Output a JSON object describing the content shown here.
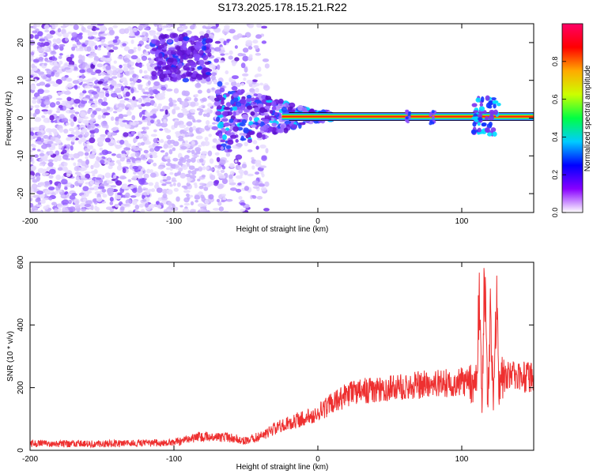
{
  "title": "S173.2025.178.15.21.R22",
  "chart_data": [
    {
      "type": "heatmap",
      "xlabel": "Height of straight line (km)",
      "ylabel": "Frequency (Hz)",
      "xlim": [
        -200,
        150
      ],
      "ylim": [
        -25,
        25
      ],
      "xticks": [
        -200,
        -100,
        0,
        100
      ],
      "yticks": [
        -20,
        -10,
        0,
        10,
        20
      ],
      "colorbar": {
        "label": "Normalized spectral amplitude",
        "range": [
          0,
          1
        ],
        "ticks": [
          0.0,
          0.2,
          0.4,
          0.6,
          0.8
        ],
        "colormap": [
          "#ffffff",
          "#8800ff",
          "#0000ff",
          "#00ccff",
          "#00ff44",
          "#ccff00",
          "#ffaa00",
          "#ff0000",
          "#ff0066"
        ]
      },
      "features": {
        "carrier_frequency_hz": 0.4,
        "carrier_x_range_km": [
          -20,
          150
        ],
        "noise_region_x_km": [
          -200,
          -45
        ],
        "noise_blob_x_km": [
          -115,
          -75
        ],
        "noise_blob_freq_hz": [
          10,
          22
        ],
        "spikes_x_km": [
          108,
          120
        ]
      }
    },
    {
      "type": "line",
      "xlabel": "Height of straight line (km)",
      "ylabel": "SNR (10 * v/v)",
      "xlim": [
        -200,
        150
      ],
      "ylim": [
        0,
        600
      ],
      "xticks": [
        -200,
        -100,
        0,
        100
      ],
      "yticks": [
        0,
        200,
        400,
        600
      ],
      "series": [
        {
          "color": "#ee3030",
          "x": [
            -200,
            -150,
            -100,
            -80,
            -60,
            -50,
            -40,
            -30,
            -20,
            -10,
            0,
            10,
            20,
            30,
            40,
            50,
            60,
            70,
            80,
            90,
            100,
            105,
            110,
            112,
            114,
            116,
            118,
            120,
            122,
            124,
            126,
            128,
            130,
            140,
            150
          ],
          "values": [
            22,
            20,
            25,
            45,
            40,
            30,
            45,
            70,
            90,
            100,
            120,
            150,
            175,
            190,
            195,
            200,
            205,
            210,
            210,
            215,
            220,
            215,
            210,
            480,
            150,
            600,
            120,
            460,
            140,
            490,
            200,
            230,
            240,
            235,
            230
          ]
        }
      ]
    }
  ]
}
